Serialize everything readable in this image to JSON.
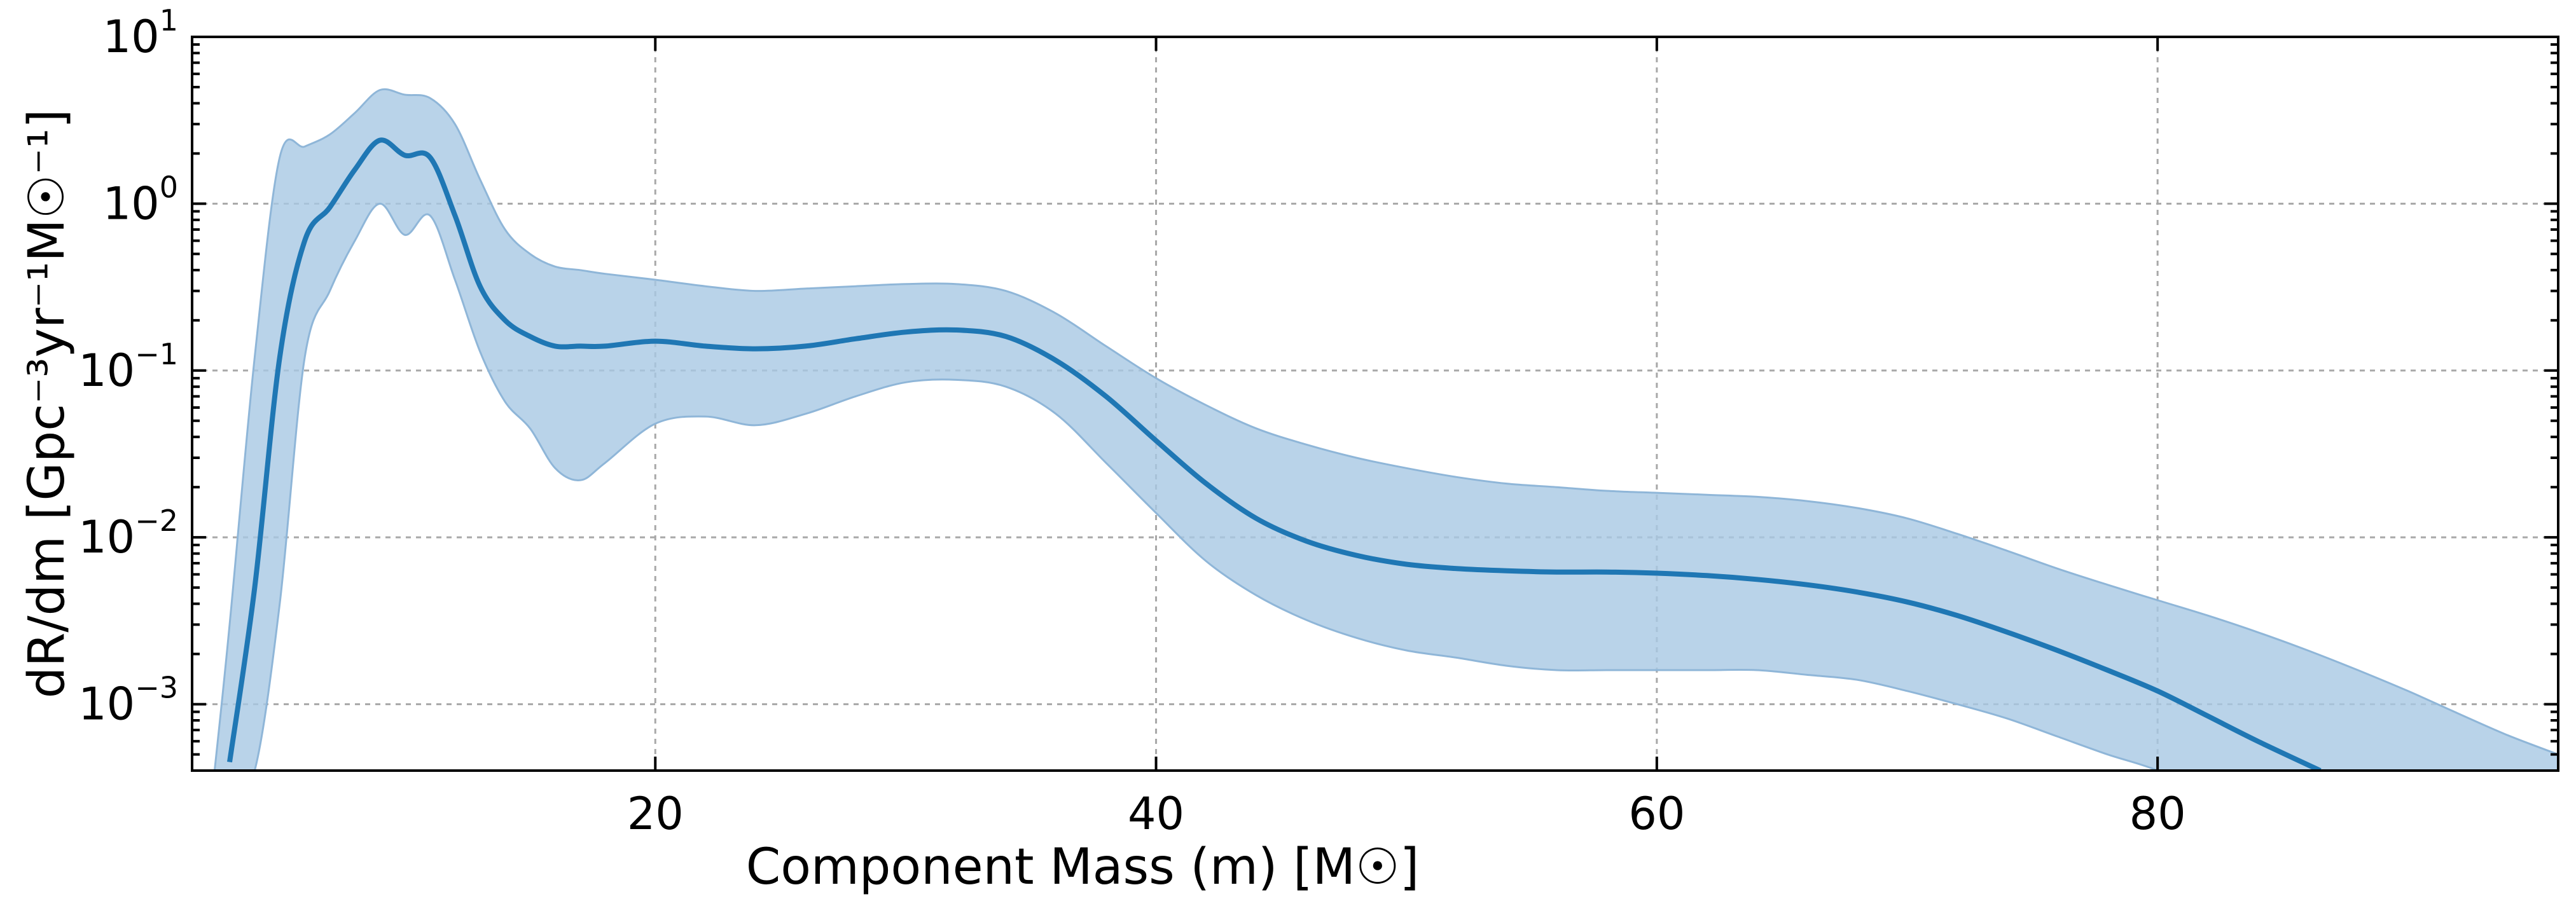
{
  "chart_data": {
    "type": "area",
    "xlabel": "Component Mass (m) [M☉]",
    "ylabel": "dR/dm [Gpc⁻³yr⁻¹M☉⁻¹]",
    "xlim": [
      1.5,
      96
    ],
    "ylim": [
      0.0004,
      10
    ],
    "yscale": "log",
    "grid": true,
    "x_ticks": [
      20,
      40,
      60,
      80
    ],
    "y_ticks": [
      {
        "value": 10,
        "base": "10",
        "exp": "1"
      },
      {
        "value": 1,
        "base": "10",
        "exp": "0"
      },
      {
        "value": 0.1,
        "base": "10",
        "exp": "−1"
      },
      {
        "value": 0.01,
        "base": "10",
        "exp": "−2"
      },
      {
        "value": 0.001,
        "base": "10",
        "exp": "−3"
      }
    ],
    "colors": {
      "line": "#1f77b4",
      "band": "#a8c8e4",
      "band_edge": "#8fb6d8"
    },
    "series": [
      {
        "role": "median",
        "x": [
          3.0,
          4.0,
          5.0,
          6.0,
          7.0,
          8.0,
          9.0,
          10.0,
          11.0,
          12.0,
          13.0,
          14.0,
          15.0,
          16.0,
          17.0,
          18.0,
          20.0,
          22.0,
          24.0,
          26.0,
          28.0,
          30.0,
          32.0,
          34.0,
          36.0,
          38.0,
          40.0,
          42.0,
          44.0,
          46.0,
          48.0,
          50.0,
          52.0,
          54.0,
          56.0,
          58.0,
          60.0,
          62.0,
          64.0,
          66.0,
          68.0,
          70.0,
          72.0,
          74.0,
          76.0,
          78.0,
          80.0,
          82.0,
          84.0,
          86.5
        ],
        "y": [
          0.00045,
          0.005,
          0.12,
          0.6,
          0.95,
          1.6,
          2.4,
          1.95,
          1.9,
          0.85,
          0.32,
          0.2,
          0.16,
          0.14,
          0.14,
          0.14,
          0.15,
          0.14,
          0.135,
          0.14,
          0.155,
          0.17,
          0.175,
          0.16,
          0.115,
          0.07,
          0.038,
          0.021,
          0.013,
          0.0095,
          0.0078,
          0.0069,
          0.0065,
          0.0063,
          0.0062,
          0.0062,
          0.0061,
          0.0059,
          0.0056,
          0.0052,
          0.0047,
          0.0041,
          0.0034,
          0.0027,
          0.0021,
          0.0016,
          0.0012,
          0.00085,
          0.0006,
          0.0004
        ]
      },
      {
        "role": "band",
        "x": [
          2.4,
          3.0,
          4.0,
          5.0,
          6.0,
          7.0,
          8.0,
          9.0,
          10.0,
          11.0,
          12.0,
          13.0,
          14.0,
          15.0,
          16.0,
          17.0,
          18.0,
          20.0,
          22.0,
          24.0,
          26.0,
          28.0,
          30.0,
          32.0,
          34.0,
          36.0,
          38.0,
          40.0,
          42.0,
          44.0,
          46.0,
          48.0,
          50.0,
          52.0,
          54.0,
          56.0,
          58.0,
          60.0,
          62.0,
          64.0,
          66.0,
          68.0,
          70.0,
          72.0,
          74.0,
          76.0,
          78.0,
          80.0,
          82.0,
          84.0,
          86.0,
          88.0,
          90.0,
          92.0,
          94.0,
          96.0
        ],
        "upper": [
          0.0004,
          0.003,
          0.12,
          1.9,
          2.2,
          2.6,
          3.5,
          4.8,
          4.5,
          4.3,
          3.0,
          1.4,
          0.7,
          0.5,
          0.42,
          0.4,
          0.38,
          0.35,
          0.32,
          0.3,
          0.31,
          0.32,
          0.33,
          0.33,
          0.3,
          0.22,
          0.14,
          0.09,
          0.062,
          0.045,
          0.036,
          0.03,
          0.026,
          0.023,
          0.021,
          0.02,
          0.019,
          0.0185,
          0.018,
          0.0175,
          0.0165,
          0.015,
          0.013,
          0.0105,
          0.0083,
          0.0065,
          0.0052,
          0.0042,
          0.0034,
          0.0027,
          0.0021,
          0.0016,
          0.0012,
          0.00088,
          0.00065,
          0.0005
        ],
        "lower": [
          null,
          null,
          0.0004,
          0.004,
          0.12,
          0.3,
          0.6,
          1.0,
          0.65,
          0.85,
          0.35,
          0.13,
          0.065,
          0.045,
          0.026,
          0.022,
          0.028,
          0.048,
          0.053,
          0.047,
          0.055,
          0.07,
          0.085,
          0.088,
          0.08,
          0.055,
          0.028,
          0.014,
          0.0072,
          0.0045,
          0.0032,
          0.0025,
          0.0021,
          0.0019,
          0.0017,
          0.0016,
          0.0016,
          0.0016,
          0.0016,
          0.0016,
          0.0015,
          0.0014,
          0.0012,
          0.001,
          0.00082,
          0.00064,
          0.0005,
          0.0004,
          null,
          null,
          null,
          null,
          null,
          null,
          null,
          null
        ]
      }
    ]
  }
}
